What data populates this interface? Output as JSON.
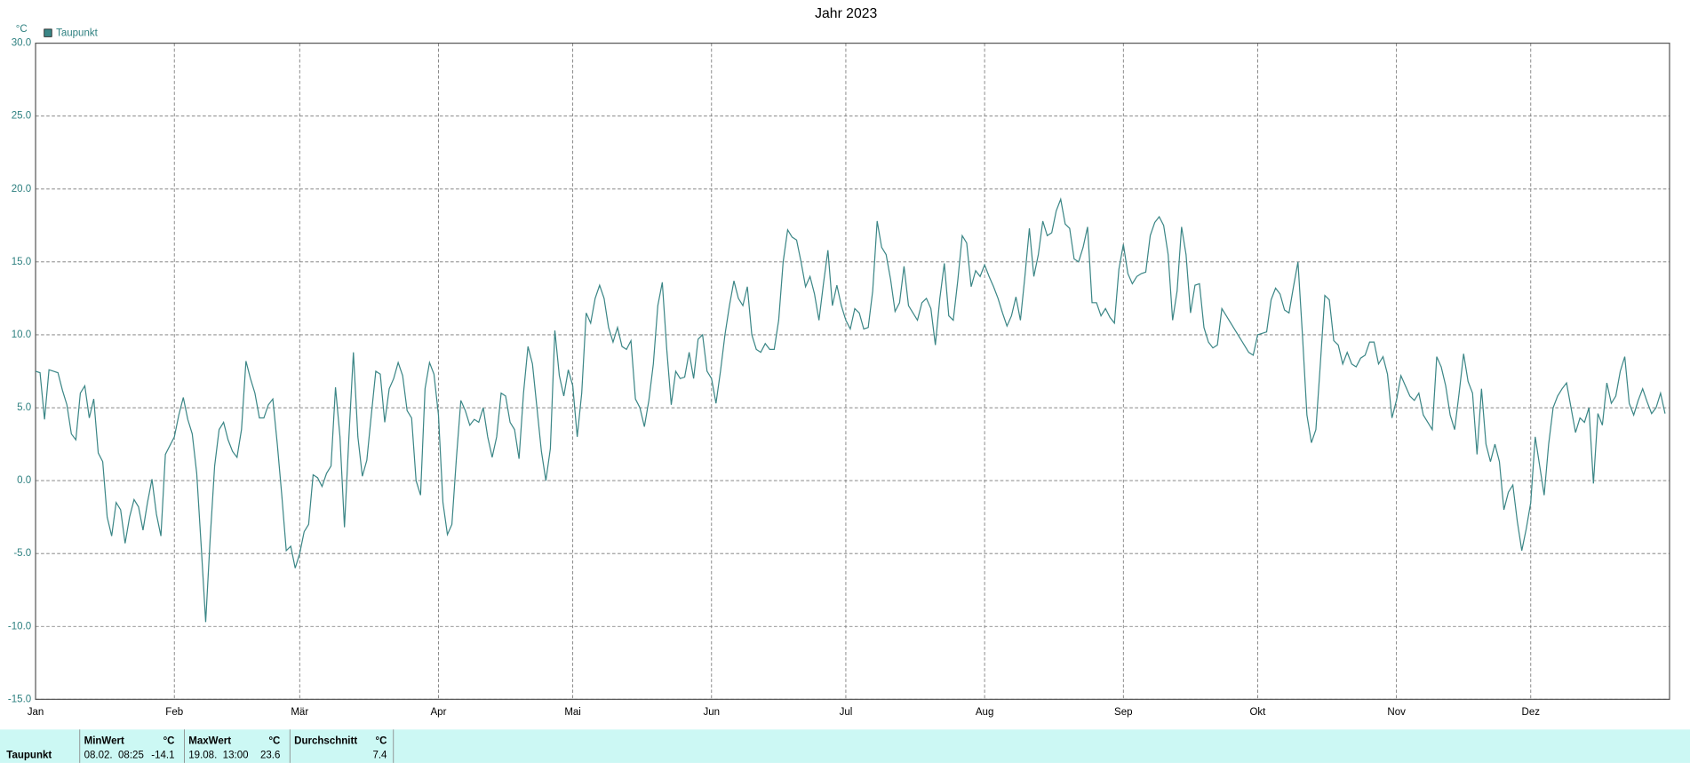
{
  "chart_data": {
    "type": "line",
    "title": "Jahr 2023",
    "y_label": "°C",
    "xlim": [
      0,
      365
    ],
    "xticks": [
      {
        "value": 0,
        "label": "Jan"
      },
      {
        "value": 31,
        "label": "Feb"
      },
      {
        "value": 59,
        "label": "Mär"
      },
      {
        "value": 90,
        "label": "Apr"
      },
      {
        "value": 120,
        "label": "Mai"
      },
      {
        "value": 151,
        "label": "Jun"
      },
      {
        "value": 181,
        "label": "Jul"
      },
      {
        "value": 212,
        "label": "Aug"
      },
      {
        "value": 243,
        "label": "Sep"
      },
      {
        "value": 273,
        "label": "Okt"
      },
      {
        "value": 304,
        "label": "Nov"
      },
      {
        "value": 334,
        "label": "Dez"
      }
    ],
    "ylim": [
      -15,
      30
    ],
    "yticks": [
      {
        "value": -15,
        "label": "-15.0"
      },
      {
        "value": -10,
        "label": "-10.0"
      },
      {
        "value": -5,
        "label": "-5.0"
      },
      {
        "value": 0,
        "label": "0.0"
      },
      {
        "value": 5,
        "label": "5.0"
      },
      {
        "value": 10,
        "label": "10.0"
      },
      {
        "value": 15,
        "label": "15.0"
      },
      {
        "value": 20,
        "label": "20.0"
      },
      {
        "value": 25,
        "label": "25.0"
      },
      {
        "value": 30,
        "label": "30.0"
      }
    ],
    "grid": true,
    "legend": "top-left",
    "series": [
      {
        "name": "Taupunkt",
        "color": "#3b8686",
        "values": [
          7.5,
          7.4,
          4.2,
          7.6,
          7.5,
          7.4,
          6.2,
          5.2,
          3.2,
          2.8,
          6.0,
          6.5,
          4.3,
          5.6,
          1.9,
          1.3,
          -2.5,
          -3.8,
          -1.5,
          -2.0,
          -4.3,
          -2.5,
          -1.3,
          -1.8,
          -3.4,
          -1.5,
          0.1,
          -2.3,
          -3.8,
          1.8,
          2.4,
          3.0,
          4.5,
          5.7,
          4.2,
          3.2,
          0.5,
          -4.5,
          -9.7,
          -4.0,
          1.0,
          3.5,
          4.0,
          2.8,
          2.0,
          1.6,
          3.5,
          8.2,
          7.0,
          6.0,
          4.3,
          4.3,
          5.2,
          5.6,
          2.5,
          -1.0,
          -4.8,
          -4.5,
          -6.0,
          -5.0,
          -3.5,
          -3.0,
          0.4,
          0.2,
          -0.4,
          0.5,
          1.0,
          6.4,
          3.0,
          -3.2,
          3.0,
          8.8,
          3.0,
          0.3,
          1.4,
          4.5,
          7.5,
          7.3,
          4.0,
          6.3,
          7.0,
          8.1,
          7.2,
          4.8,
          4.3,
          0.0,
          -1.0,
          6.3,
          8.1,
          7.3,
          4.5,
          -1.5,
          -3.7,
          -3.0,
          1.5,
          5.5,
          4.8,
          3.8,
          4.2,
          4.0,
          5.0,
          3.0,
          1.6,
          3.0,
          6.0,
          5.8,
          4.0,
          3.5,
          1.5,
          6.0,
          9.2,
          8.0,
          5.0,
          2.0,
          0.0,
          2.2,
          10.3,
          7.2,
          5.8,
          7.6,
          6.5,
          3.0,
          6.0,
          11.5,
          10.8,
          12.5,
          13.4,
          12.5,
          10.5,
          9.5,
          10.5,
          9.2,
          9.0,
          9.6,
          5.6,
          5.0,
          3.7,
          5.5,
          8.0,
          12.0,
          13.6,
          9.0,
          5.2,
          7.5,
          7.0,
          7.1,
          8.8,
          7.0,
          9.7,
          10.0,
          7.5,
          7.0,
          5.3,
          7.5,
          10.0,
          12.0,
          13.7,
          12.5,
          12.0,
          13.3,
          10.0,
          9.0,
          8.8,
          9.4,
          9.0,
          9.0,
          11.0,
          15.0,
          17.2,
          16.7,
          16.5,
          15.0,
          13.3,
          14.0,
          12.8,
          11.0,
          13.5,
          15.8,
          12.0,
          13.4,
          12.0,
          11.0,
          10.4,
          11.8,
          11.5,
          10.4,
          10.5,
          13.0,
          17.8,
          16.0,
          15.5,
          13.8,
          11.6,
          12.2,
          14.7,
          12.0,
          11.5,
          11.0,
          12.2,
          12.5,
          11.8,
          9.3,
          12.5,
          14.9,
          11.3,
          11.0,
          13.7,
          16.8,
          16.3,
          13.3,
          14.4,
          14.0,
          14.8,
          14.0,
          13.3,
          12.5,
          11.5,
          10.6,
          11.3,
          12.6,
          11.0,
          14.0,
          17.3,
          14.0,
          15.5,
          17.8,
          16.8,
          17.0,
          18.5,
          19.3,
          17.6,
          17.3,
          15.2,
          15.0,
          16.0,
          17.4,
          12.2,
          12.2,
          11.3,
          11.8,
          11.2,
          10.8,
          14.5,
          16.2,
          14.2,
          13.5,
          14.0,
          14.2,
          14.3,
          16.8,
          17.7,
          18.1,
          17.5,
          15.5,
          11.0,
          13.0,
          17.4,
          15.5,
          11.5,
          13.4,
          13.5,
          10.5,
          9.5,
          9.1,
          9.3,
          11.8,
          11.3,
          10.8,
          10.3,
          9.8,
          9.3,
          8.8,
          8.6,
          10.0,
          10.1,
          10.2,
          12.4,
          13.2,
          12.8,
          11.7,
          11.5,
          13.3,
          15.0,
          10.0,
          4.5,
          2.6,
          3.5,
          8.0,
          12.7,
          12.4,
          9.6,
          9.3,
          8.0,
          8.8,
          8.0,
          7.8,
          8.4,
          8.6,
          9.5,
          9.5,
          8.0,
          8.5,
          7.3,
          4.3,
          5.5,
          7.2,
          6.5,
          5.8,
          5.5,
          6.0,
          4.5,
          4.0,
          3.5,
          8.5,
          7.8,
          6.5,
          4.5,
          3.5,
          6.0,
          8.7,
          6.8,
          6.0,
          1.8,
          6.3,
          2.5,
          1.3,
          2.5,
          1.3,
          -2.0,
          -0.8,
          -0.3,
          -2.8,
          -4.8,
          -3.3,
          -1.5,
          3.0,
          1.0,
          -1.0,
          2.5,
          5.0,
          5.8,
          6.3,
          6.7,
          5.0,
          3.3,
          4.3,
          4.0,
          5.0,
          -0.2,
          4.6,
          3.8,
          6.7,
          5.3,
          5.8,
          7.5,
          8.5,
          5.3,
          4.5,
          5.5,
          6.3,
          5.4,
          4.6,
          5.0,
          6.0,
          4.6
        ]
      }
    ]
  },
  "stats_table": {
    "row_label": "Taupunkt",
    "columns": [
      {
        "header": "MinWert",
        "unit": "°C",
        "time": "08.02.  08:25",
        "value": "-14.1"
      },
      {
        "header": "MaxWert",
        "unit": "°C",
        "time": "19.08.  13:00",
        "value": "23.6"
      },
      {
        "header": "Durchschnitt",
        "unit": "°C",
        "value": "7.4"
      }
    ]
  }
}
